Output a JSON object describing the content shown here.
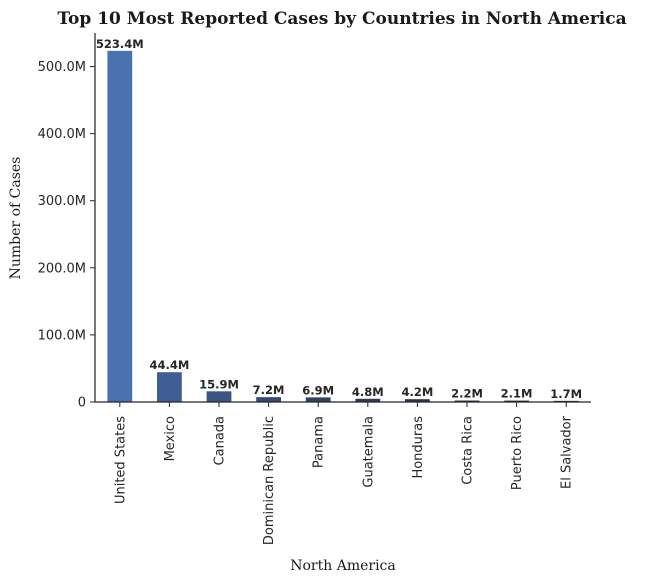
{
  "chart_data": {
    "type": "bar",
    "title": "Top 10 Most Reported Cases by Countries in North America",
    "xlabel": "North America",
    "ylabel": "Number of Cases",
    "categories": [
      "United States",
      "Mexico",
      "Canada",
      "Dominican Republic",
      "Panama",
      "Guatemala",
      "Honduras",
      "Costa Rica",
      "Puerto Rico",
      "El Salvador"
    ],
    "values": [
      523.4,
      44.4,
      15.9,
      7.2,
      6.9,
      4.8,
      4.2,
      2.2,
      2.1,
      1.7
    ],
    "value_labels": [
      "523.4M",
      "44.4M",
      "15.9M",
      "7.2M",
      "6.9M",
      "4.8M",
      "4.2M",
      "2.2M",
      "2.1M",
      "1.7M"
    ],
    "ylim": [
      0,
      550
    ],
    "yticks": [
      0,
      100,
      200,
      300,
      400,
      500
    ],
    "ytick_labels": [
      "0",
      "100.0M",
      "200.0M",
      "300.0M",
      "400.0M",
      "500.0M"
    ],
    "grid": false,
    "bar_colors": [
      "#4a72b0",
      "#3f5f94",
      "#3a5483",
      "#344a73",
      "#2f4265",
      "#2b3b5a",
      "#283651",
      "#25324a",
      "#232e44",
      "#212b40"
    ]
  }
}
